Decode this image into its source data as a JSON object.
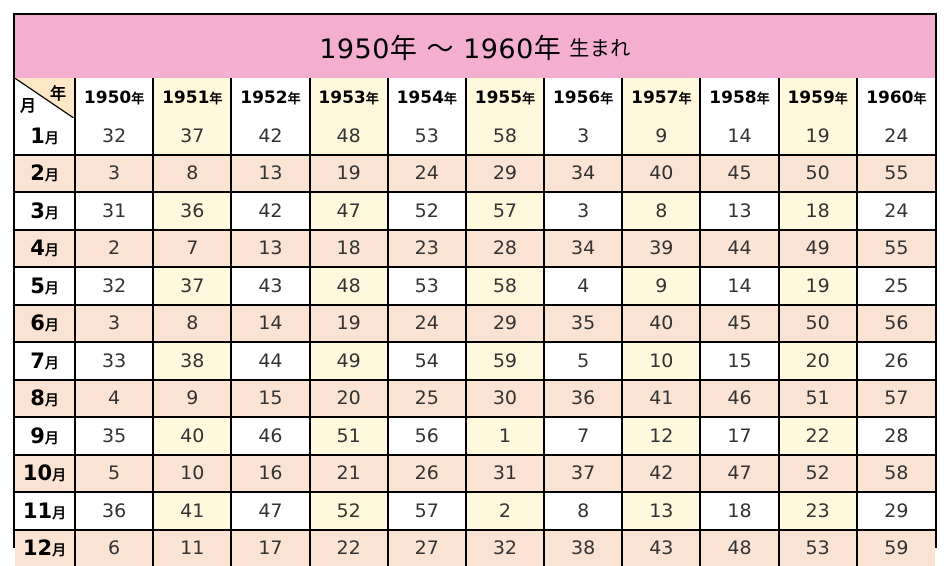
{
  "title": {
    "main": "1950年 〜 1960年",
    "suffix": "生まれ"
  },
  "corner": {
    "year_label": "年",
    "month_label": "月"
  },
  "year_suffix": "年",
  "month_suffix": "月",
  "years": [
    "1950",
    "1951",
    "1952",
    "1953",
    "1954",
    "1955",
    "1956",
    "1957",
    "1958",
    "1959",
    "1960"
  ],
  "rows": [
    {
      "month": "1",
      "values": [
        "32",
        "37",
        "42",
        "48",
        "53",
        "58",
        "3",
        "9",
        "14",
        "19",
        "24"
      ]
    },
    {
      "month": "2",
      "values": [
        "3",
        "8",
        "13",
        "19",
        "24",
        "29",
        "34",
        "40",
        "45",
        "50",
        "55"
      ]
    },
    {
      "month": "3",
      "values": [
        "31",
        "36",
        "42",
        "47",
        "52",
        "57",
        "3",
        "8",
        "13",
        "18",
        "24"
      ]
    },
    {
      "month": "4",
      "values": [
        "2",
        "7",
        "13",
        "18",
        "23",
        "28",
        "34",
        "39",
        "44",
        "49",
        "55"
      ]
    },
    {
      "month": "5",
      "values": [
        "32",
        "37",
        "43",
        "48",
        "53",
        "58",
        "4",
        "9",
        "14",
        "19",
        "25"
      ]
    },
    {
      "month": "6",
      "values": [
        "3",
        "8",
        "14",
        "19",
        "24",
        "29",
        "35",
        "40",
        "45",
        "50",
        "56"
      ]
    },
    {
      "month": "7",
      "values": [
        "33",
        "38",
        "44",
        "49",
        "54",
        "59",
        "5",
        "10",
        "15",
        "20",
        "26"
      ]
    },
    {
      "month": "8",
      "values": [
        "4",
        "9",
        "15",
        "20",
        "25",
        "30",
        "36",
        "41",
        "46",
        "51",
        "57"
      ]
    },
    {
      "month": "9",
      "values": [
        "35",
        "40",
        "46",
        "51",
        "56",
        "1",
        "7",
        "12",
        "17",
        "22",
        "28"
      ]
    },
    {
      "month": "10",
      "values": [
        "5",
        "10",
        "16",
        "21",
        "26",
        "31",
        "37",
        "42",
        "47",
        "52",
        "58"
      ]
    },
    {
      "month": "11",
      "values": [
        "36",
        "41",
        "47",
        "52",
        "57",
        "2",
        "8",
        "13",
        "18",
        "23",
        "29"
      ]
    },
    {
      "month": "12",
      "values": [
        "6",
        "11",
        "17",
        "22",
        "27",
        "32",
        "38",
        "43",
        "48",
        "53",
        "59"
      ]
    }
  ],
  "colors": {
    "title_bg": "#f4aed0",
    "even_row_bg": "#fbe3d3",
    "alt_column_bg": "#fef8dd",
    "border": "#000000"
  }
}
